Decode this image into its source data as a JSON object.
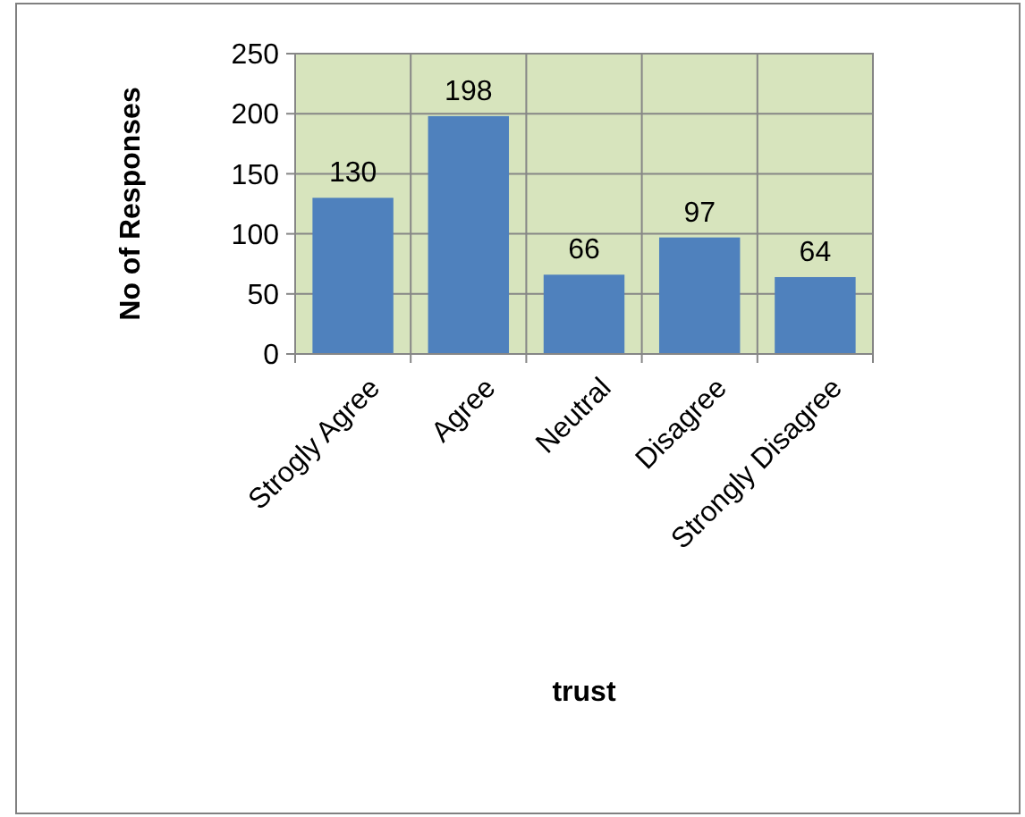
{
  "chart_data": {
    "type": "bar",
    "xlabel": "trust",
    "ylabel": "No of Responses",
    "categories": [
      "Strogly Agree",
      "Agree",
      "Neutral",
      "Disagree",
      "Strongly Disagree"
    ],
    "values": [
      130,
      198,
      66,
      97,
      64
    ],
    "color": "#4f81bd",
    "ylim": [
      0,
      250
    ],
    "yticks": [
      0,
      50,
      100,
      150,
      200,
      250
    ],
    "grid": true,
    "data_labels": true
  }
}
